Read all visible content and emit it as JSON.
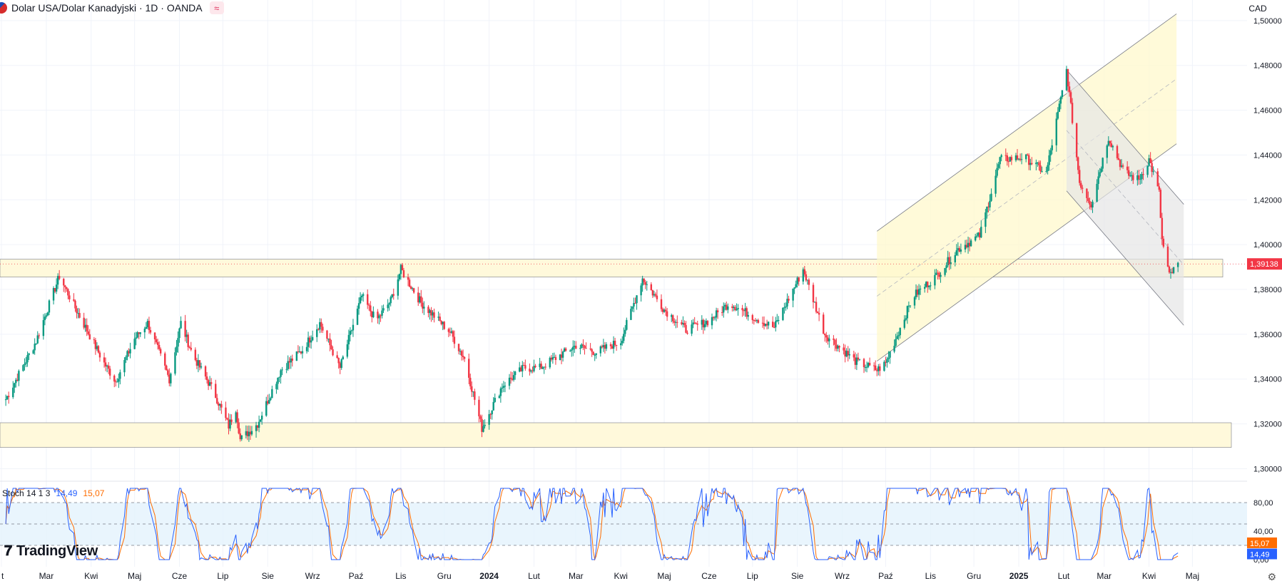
{
  "header": {
    "title": "Dolar USA/Dolar Kanadyjski · 1D · OANDA",
    "currency_button": "CAD"
  },
  "stoch": {
    "label": "Stoch 14 1 3",
    "k_value": "14,49",
    "d_value": "15,07"
  },
  "branding": {
    "logo_text": "TradingView"
  },
  "colors": {
    "up": "#089981",
    "down": "#f23645",
    "k_line": "#2962ff",
    "d_line": "#ff6d00",
    "zone_fill": "#fff9db",
    "price_tag": "#f23645"
  },
  "chart_data": [
    {
      "type": "candlestick",
      "title": "Dolar USA/Dolar Kanadyjski · 1D · OANDA",
      "y_ticks": [
        "1,500000",
        "1,480000",
        "1,460000",
        "1,440000",
        "1,420000",
        "1,400000",
        "1,380000",
        "1,360000",
        "1,340000",
        "1,320000",
        "1,300000"
      ],
      "ylim": [
        1.296,
        1.506
      ],
      "x_ticks": [
        "t",
        "Mar",
        "Kwi",
        "Maj",
        "Cze",
        "Lip",
        "Sie",
        "Wrz",
        "Paź",
        "Lis",
        "Gru",
        "2024",
        "Lut",
        "Mar",
        "Kwi",
        "Maj",
        "Cze",
        "Lip",
        "Sie",
        "Wrz",
        "Paź",
        "Lis",
        "Gru",
        "2025",
        "Lut",
        "Mar",
        "Kwi",
        "Maj"
      ],
      "last_price": "1,39138",
      "close_path": [
        [
          "2023-02-01",
          1.331
        ],
        [
          "2023-02-22",
          1.357
        ],
        [
          "2023-03-10",
          1.386
        ],
        [
          "2023-03-20",
          1.373
        ],
        [
          "2023-04-10",
          1.347
        ],
        [
          "2023-04-18",
          1.339
        ],
        [
          "2023-05-01",
          1.358
        ],
        [
          "2023-05-10",
          1.365
        ],
        [
          "2023-05-25",
          1.34
        ],
        [
          "2023-06-02",
          1.365
        ],
        [
          "2023-06-10",
          1.351
        ],
        [
          "2023-06-25",
          1.334
        ],
        [
          "2023-07-05",
          1.319
        ],
        [
          "2023-07-10",
          1.327
        ],
        [
          "2023-07-13",
          1.313
        ],
        [
          "2023-07-25",
          1.32
        ],
        [
          "2023-08-10",
          1.344
        ],
        [
          "2023-08-25",
          1.353
        ],
        [
          "2023-09-06",
          1.365
        ],
        [
          "2023-09-20",
          1.345
        ],
        [
          "2023-10-05",
          1.377
        ],
        [
          "2023-10-15",
          1.366
        ],
        [
          "2023-10-25",
          1.375
        ],
        [
          "2023-11-01",
          1.389
        ],
        [
          "2023-11-15",
          1.374
        ],
        [
          "2023-12-05",
          1.361
        ],
        [
          "2023-12-15",
          1.349
        ],
        [
          "2023-12-27",
          1.318
        ],
        [
          "2024-01-10",
          1.337
        ],
        [
          "2024-01-25",
          1.345
        ],
        [
          "2024-02-05",
          1.345
        ],
        [
          "2024-03-01",
          1.355
        ],
        [
          "2024-03-15",
          1.352
        ],
        [
          "2024-04-01",
          1.357
        ],
        [
          "2024-04-16",
          1.385
        ],
        [
          "2024-05-01",
          1.371
        ],
        [
          "2024-05-16",
          1.362
        ],
        [
          "2024-06-01",
          1.366
        ],
        [
          "2024-06-15",
          1.374
        ],
        [
          "2024-07-01",
          1.368
        ],
        [
          "2024-07-16",
          1.363
        ],
        [
          "2024-08-05",
          1.389
        ],
        [
          "2024-08-20",
          1.36
        ],
        [
          "2024-09-10",
          1.348
        ],
        [
          "2024-09-25",
          1.344
        ],
        [
          "2024-10-01",
          1.347
        ],
        [
          "2024-10-20",
          1.377
        ],
        [
          "2024-11-05",
          1.386
        ],
        [
          "2024-11-20",
          1.398
        ],
        [
          "2024-12-05",
          1.404
        ],
        [
          "2024-12-19",
          1.438
        ],
        [
          "2025-01-05",
          1.439
        ],
        [
          "2025-01-20",
          1.432
        ],
        [
          "2025-02-03",
          1.478
        ],
        [
          "2025-02-12",
          1.428
        ],
        [
          "2025-02-20",
          1.418
        ],
        [
          "2025-03-04",
          1.448
        ],
        [
          "2025-03-15",
          1.432
        ],
        [
          "2025-03-25",
          1.429
        ],
        [
          "2025-04-01",
          1.438
        ],
        [
          "2025-04-08",
          1.423
        ],
        [
          "2025-04-10",
          1.402
        ],
        [
          "2025-04-15",
          1.386
        ],
        [
          "2025-04-21",
          1.391
        ]
      ],
      "resistance_zone": [
        1.3855,
        1.3935
      ],
      "support_zone": [
        1.3095,
        1.3205
      ],
      "rising_channel": {
        "start": [
          "2024-09-25",
          1.348
        ],
        "end": [
          "2025-04-20",
          1.445
        ],
        "width": 0.058
      },
      "falling_channel": {
        "start": [
          "2025-02-03",
          1.478
        ],
        "end": [
          "2025-04-25",
          1.364
        ],
        "width": 0.054
      }
    },
    {
      "type": "line",
      "title": "Stoch 14 1 3",
      "y_ticks": [
        "80,00",
        "40,00",
        "0,00"
      ],
      "ylim": [
        0,
        100
      ],
      "bands": [
        20,
        50,
        80
      ],
      "series": [
        {
          "name": "%K",
          "last": "14,49"
        },
        {
          "name": "%D",
          "last": "15,07"
        }
      ]
    }
  ]
}
